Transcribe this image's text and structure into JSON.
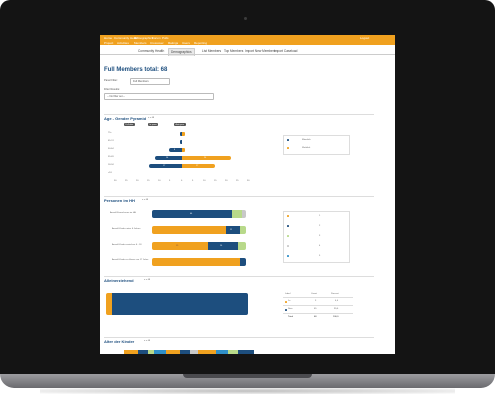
{
  "topbar": {
    "links": [
      "Home",
      "Community Health",
      "Demographics",
      "Forum",
      "Polls"
    ],
    "nav": [
      "Project",
      "Activities",
      "Members",
      "Crossover",
      "Ratings",
      "Users",
      "Reporting"
    ],
    "user": "Logout"
  },
  "tabs": [
    "Community Health",
    "Demographics",
    "List Members",
    "Top Members",
    "Import New Members",
    "Import Caseload"
  ],
  "active_tab": "Demographics",
  "page": {
    "title": "Full Members total: 68",
    "panel_filter_label": "Panel Filter:",
    "panel_filter_value": "Full Members",
    "filter_results_label": "Filter Results:",
    "filter_results_value": "-- No filter set --"
  },
  "pyramid": {
    "title": "Age - Gender Pyramid",
    "count": "n = 68",
    "buttons": [
      "Full data",
      "In years",
      "Auto year"
    ],
    "legend": [
      {
        "label": "Männlich",
        "color": "#1d4e7e"
      },
      {
        "label": "Weiblich",
        "color": "#f0a11f"
      }
    ],
    "rows": [
      "75+",
      "65-74",
      "50-64",
      "35-49",
      "18-34",
      "<18"
    ],
    "bar_labels": {
      "m35": "14",
      "f35": "24",
      "m18": "17",
      "f18": "17",
      "m50": "6"
    },
    "axis_ticks": [
      "30",
      "25",
      "20",
      "15",
      "10",
      "5",
      "0",
      "5",
      "10",
      "15",
      "20",
      "25",
      "30"
    ]
  },
  "household": {
    "title": "Personen im HH",
    "count": "n = 68",
    "rows": [
      {
        "label": "Anzahl Erwachsene im HH",
        "v1": "44",
        "v2": "1"
      },
      {
        "label": "Anzahl Kinder unter 6 Jahren",
        "v1": "",
        "v2": "11"
      },
      {
        "label": "Anzahl Kinder zwischen 6 - 18",
        "v1": "19",
        "v2": "14"
      },
      {
        "label": "Anzahl Kinder zu Hause nur 17 Jahre",
        "v1": "",
        "v2": ""
      }
    ],
    "legend": [
      {
        "color": "#f0a11f",
        "value": "1"
      },
      {
        "color": "#1d4e7e",
        "value": "2"
      },
      {
        "color": "#b8d98a",
        "value": "3"
      },
      {
        "color": "#c8c8c8",
        "value": "4"
      },
      {
        "color": "#2f8fc8",
        "value": "5"
      }
    ]
  },
  "single_parent": {
    "title": "Alleinerziehend",
    "count": "n = 68",
    "table_headers": [
      "Label",
      "Count",
      "Percent"
    ],
    "rows": [
      {
        "label": "Ja",
        "count": "3",
        "percent": "4,4",
        "color": "#f0a11f"
      },
      {
        "label": "Nein",
        "count": "65",
        "percent": "95,6",
        "color": "#1d4e7e"
      },
      {
        "label": "Total",
        "count": "68",
        "percent": "100,0",
        "color": ""
      }
    ]
  },
  "children_age": {
    "title": "Alter der Kinder",
    "count": "n = 68"
  }
}
